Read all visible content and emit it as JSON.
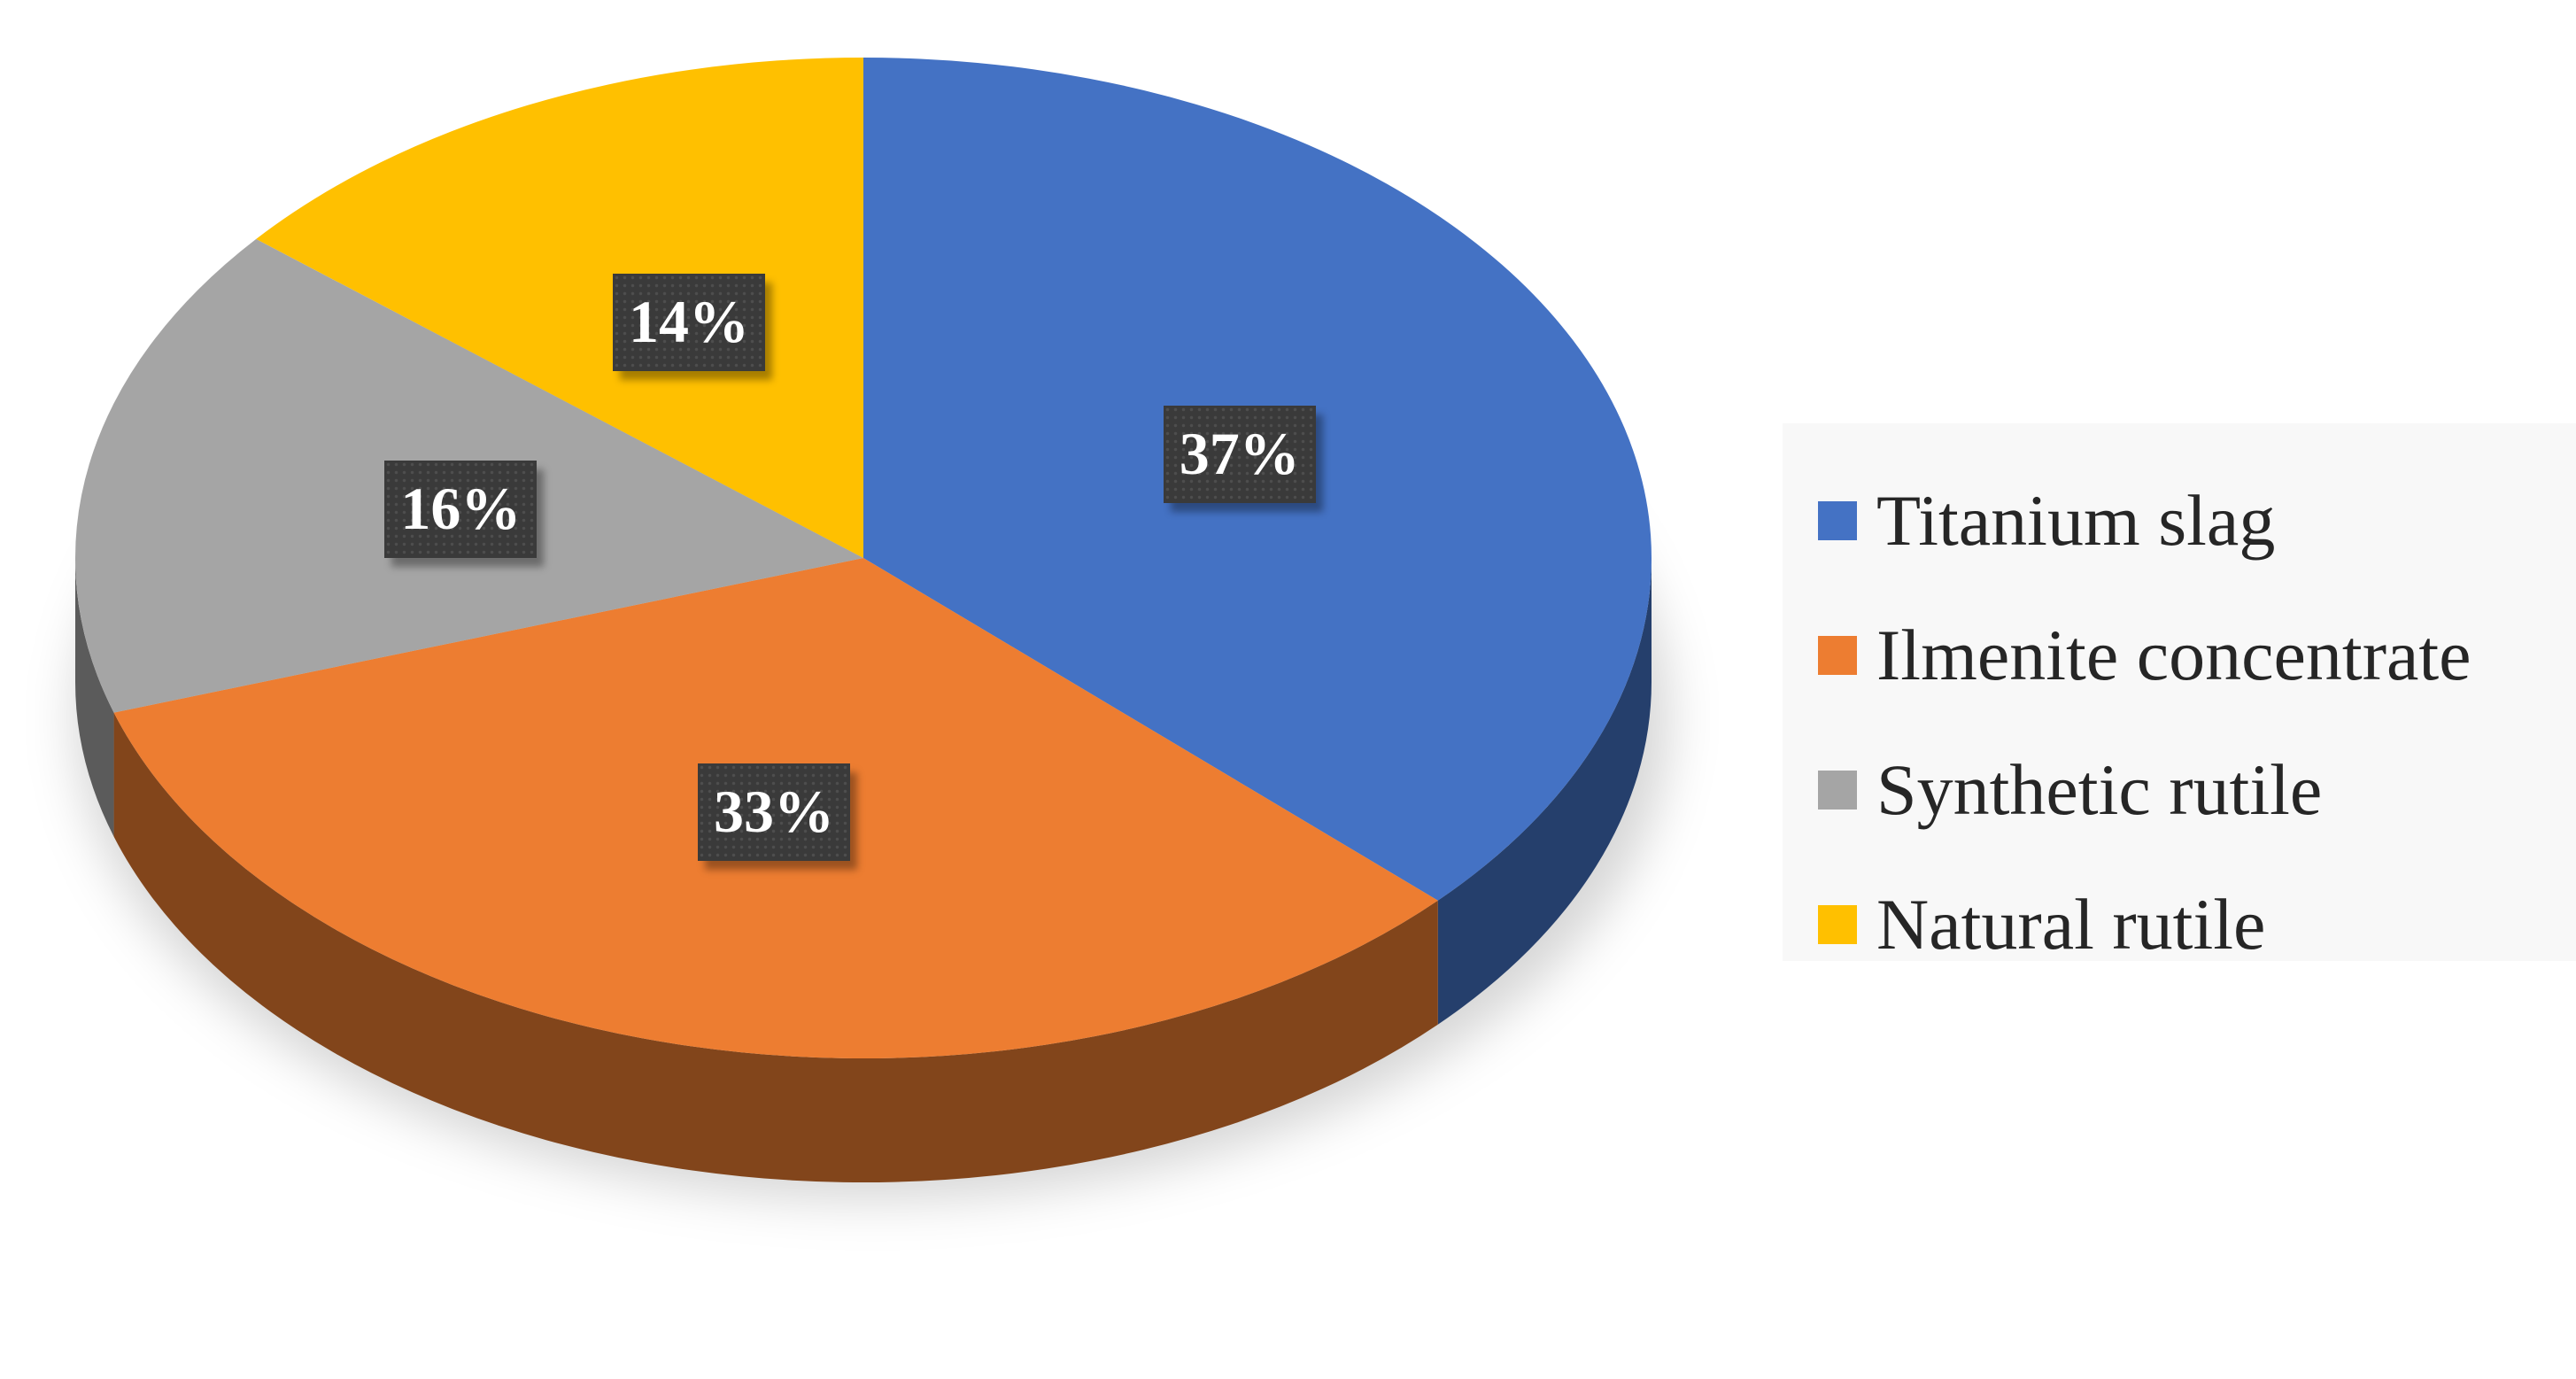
{
  "chart_data": {
    "type": "pie",
    "title": "",
    "style": "3d",
    "legend_position": "right",
    "categories": [
      "Titanium slag",
      "Ilmenite concentrate",
      "Synthetic rutile",
      "Natural rutile"
    ],
    "values": [
      37,
      33,
      16,
      14
    ],
    "labels": [
      "37%",
      "33%",
      "16%",
      "14%"
    ],
    "colors": [
      "#4472C4",
      "#ED7D31",
      "#A5A5A5",
      "#FFC000"
    ]
  }
}
